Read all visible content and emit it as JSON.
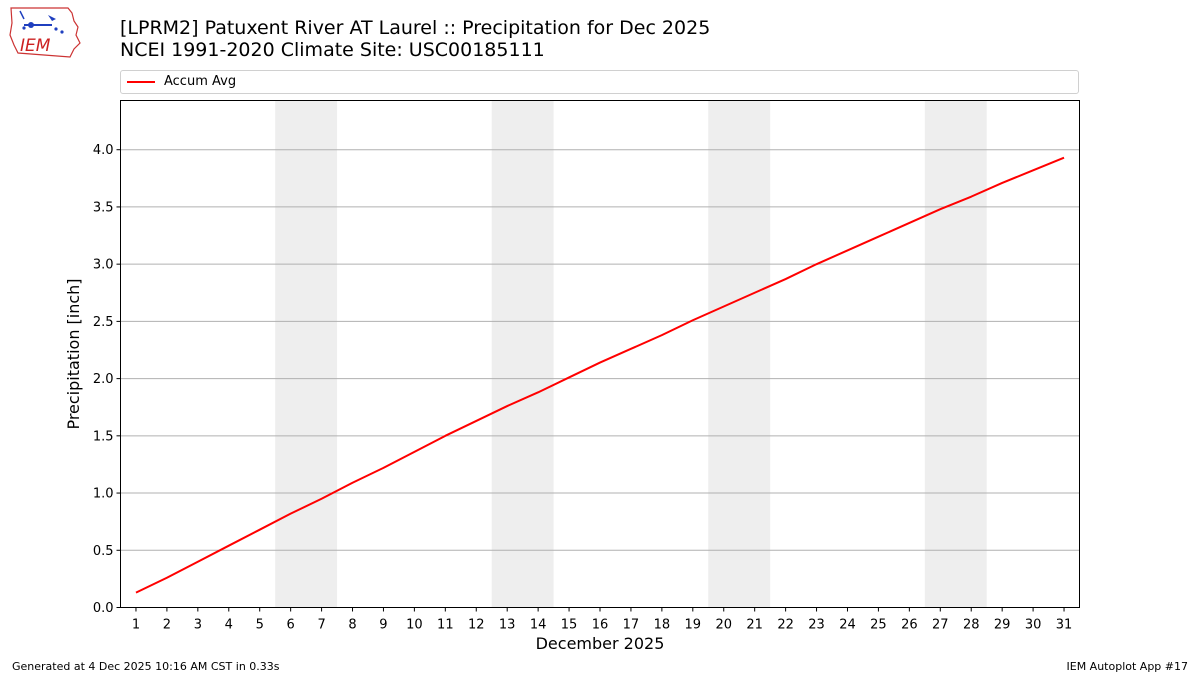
{
  "header": {
    "title_line1": "[LPRM2] Patuxent River  AT Laurel :: Precipitation for Dec 2025",
    "title_line2": "NCEI 1991-2020 Climate Site: USC00185111",
    "logo_text": "IEM"
  },
  "legend": {
    "label": "Accum Avg",
    "color": "#ff0000"
  },
  "footer": {
    "left": "Generated at 4 Dec 2025 10:16 AM CST in 0.33s",
    "right": "IEM Autoplot App #17"
  },
  "chart_data": {
    "type": "line",
    "title": "[LPRM2] Patuxent River  AT Laurel :: Precipitation for Dec 2025",
    "subtitle": "NCEI 1991-2020 Climate Site: USC00185111",
    "xlabel": "December 2025",
    "ylabel": "Precipitation [inch]",
    "x": [
      1,
      2,
      3,
      4,
      5,
      6,
      7,
      8,
      9,
      10,
      11,
      12,
      13,
      14,
      15,
      16,
      17,
      18,
      19,
      20,
      21,
      22,
      23,
      24,
      25,
      26,
      27,
      28,
      29,
      30,
      31
    ],
    "xlim": [
      0.5,
      31.5
    ],
    "ylim": [
      0,
      4.43
    ],
    "yticks": [
      0.0,
      0.5,
      1.0,
      1.5,
      2.0,
      2.5,
      3.0,
      3.5,
      4.0
    ],
    "ytick_labels": [
      "0.0",
      "0.5",
      "1.0",
      "1.5",
      "2.0",
      "2.5",
      "3.0",
      "3.5",
      "4.0"
    ],
    "grid": "horizontal",
    "legend_position": "top",
    "weekend_shading": [
      [
        5.5,
        7.5
      ],
      [
        12.5,
        14.5
      ],
      [
        19.5,
        21.5
      ],
      [
        26.5,
        28.5
      ]
    ],
    "series": [
      {
        "name": "Accum Avg",
        "color": "#ff0000",
        "values": [
          0.13,
          0.26,
          0.4,
          0.54,
          0.68,
          0.82,
          0.95,
          1.09,
          1.22,
          1.36,
          1.5,
          1.63,
          1.76,
          1.88,
          2.01,
          2.14,
          2.26,
          2.38,
          2.51,
          2.63,
          2.75,
          2.87,
          3.0,
          3.12,
          3.24,
          3.36,
          3.48,
          3.59,
          3.71,
          3.82,
          3.93
        ]
      }
    ]
  }
}
